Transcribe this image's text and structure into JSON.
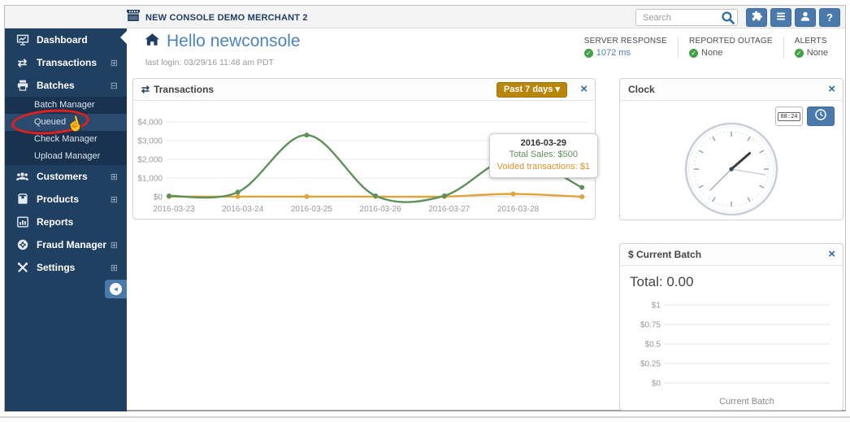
{
  "topbar": {
    "brand": "NEW CONSOLE DEMO MERCHANT 2",
    "search_placeholder": "Search",
    "help_label": "?"
  },
  "sidebar": {
    "items": [
      {
        "label": "Dashboard",
        "expander": ""
      },
      {
        "label": "Transactions",
        "expander": "⊞"
      },
      {
        "label": "Batches",
        "expander": "⊟"
      },
      {
        "label": "Customers",
        "expander": "⊞"
      },
      {
        "label": "Products",
        "expander": "⊞"
      },
      {
        "label": "Reports",
        "expander": ""
      },
      {
        "label": "Fraud Manager",
        "expander": "⊞"
      },
      {
        "label": "Settings",
        "expander": "⊞"
      }
    ],
    "submenu": [
      "Batch Manager",
      "Queued",
      "Check Manager",
      "Upload Manager"
    ],
    "collapse_arrow": "◄"
  },
  "header": {
    "greeting": "Hello newconsole",
    "last_login": "last login: 03/29/16 11:48 am PDT",
    "status": [
      {
        "label": "SERVER RESPONSE",
        "ok_mark": "✓",
        "value": "1072 ms"
      },
      {
        "label": "REPORTED OUTAGE",
        "ok_mark": "✓",
        "value": "None"
      },
      {
        "label": "ALERTS",
        "ok_mark": "✓",
        "value": "None"
      }
    ]
  },
  "panels": {
    "transactions": {
      "icon": "⇄",
      "title": "Transactions",
      "range_button": "Past 7 days ▾",
      "close": "×"
    },
    "clock": {
      "title": "Clock",
      "close": "×",
      "digital_time": "08:24"
    },
    "current_batch": {
      "title": "$ Current Batch",
      "close": "×",
      "total": "Total: 0.00"
    }
  },
  "chart_data": [
    {
      "name": "transactions",
      "type": "line",
      "x": [
        "2016-03-23",
        "2016-03-24",
        "2016-03-25",
        "2016-03-26",
        "2016-03-27",
        "2016-03-28",
        "2016-03-29"
      ],
      "x_labels_visible": [
        "2016-03-23",
        "2016-03-24",
        "2016-03-25",
        "2016-03-26",
        "2016-03-27",
        "2016-03-28"
      ],
      "series": [
        {
          "name": "Total Sales",
          "color": "#5f8f5a",
          "values": [
            50,
            250,
            3300,
            50,
            50,
            2100,
            500
          ]
        },
        {
          "name": "Voided transactions",
          "color": "#e0a33a",
          "values": [
            10,
            10,
            10,
            10,
            10,
            150,
            1
          ]
        }
      ],
      "ylim": [
        0,
        4000
      ],
      "yticks": [
        "$0",
        "$1,000",
        "$2,000",
        "$3,000",
        "$4,000"
      ],
      "grid": true,
      "legend": "none",
      "tooltip": {
        "title": "2016-03-29",
        "total_sales": "Total Sales: $500",
        "voided": "Voided transactions: $1"
      }
    },
    {
      "name": "current-batch",
      "type": "bar",
      "categories": [
        "Current Batch"
      ],
      "values": [
        0
      ],
      "ylim": [
        0,
        1
      ],
      "yticks": [
        "$0",
        "$0.25",
        "$0.5",
        "$0.75",
        "$1"
      ],
      "xlabel": "Current Batch",
      "grid": true
    }
  ],
  "colors": {
    "sidebar_navy": "#204061",
    "accent_blue": "#4a7aab",
    "heading_blue": "#4d83b8",
    "link_blue": "#2e6da4",
    "gold_button": "#b8860b",
    "chart_green": "#5f8f5a",
    "chart_orange": "#e0a33a",
    "status_green": "#43a047",
    "annotation_red": "#e41e1e"
  }
}
